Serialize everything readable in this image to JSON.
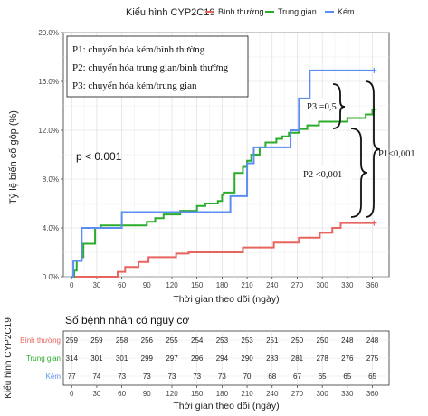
{
  "legend": {
    "title": "Kiểu hình CYP2C19",
    "items": [
      {
        "label": "Bình thường",
        "color": "#e8645f"
      },
      {
        "label": "Trung gian",
        "color": "#2cac2c"
      },
      {
        "label": "Kém",
        "color": "#5b8ef0"
      }
    ]
  },
  "chart_data": {
    "type": "line",
    "step": true,
    "xlabel": "Thời gian theo dõi (ngày)",
    "ylabel": "Tỷ lệ biến cố gộp (%)",
    "xlim": [
      -10,
      380
    ],
    "ylim": [
      0,
      20
    ],
    "xticks": [
      0,
      30,
      60,
      90,
      120,
      150,
      180,
      210,
      240,
      270,
      300,
      330,
      360
    ],
    "yticks": [
      0,
      4,
      8,
      12,
      16,
      20
    ],
    "ytick_labels": [
      "0.0%",
      "4.0%",
      "8.0%",
      "12.0%",
      "16.0%",
      "20.0%"
    ],
    "grid": true,
    "legend_position": "top",
    "series": [
      {
        "name": "Bình thường",
        "color": "#e8645f",
        "x": [
          0,
          48,
          55,
          60,
          64,
          70,
          80,
          92,
          120,
          125,
          140,
          170,
          205,
          225,
          242,
          252,
          272,
          287,
          297,
          312,
          322,
          362
        ],
        "y": [
          0,
          0,
          0.4,
          0.4,
          0.8,
          0.8,
          1.2,
          1.6,
          1.6,
          1.9,
          2.0,
          2.0,
          2.4,
          2.4,
          2.8,
          2.8,
          3.2,
          3.2,
          3.6,
          4.0,
          4.4,
          4.4
        ]
      },
      {
        "name": "Trung gian",
        "color": "#2cac2c",
        "x": [
          0,
          3,
          6,
          12,
          14,
          28,
          35,
          60,
          90,
          100,
          110,
          130,
          150,
          160,
          175,
          180,
          182,
          195,
          205,
          210,
          215,
          225,
          232,
          245,
          252,
          260,
          265,
          272,
          282,
          290,
          296,
          302,
          322,
          330,
          342,
          352,
          360,
          362
        ],
        "y": [
          0,
          0.5,
          1.3,
          1.6,
          2.7,
          4.0,
          4.2,
          4.2,
          4.5,
          4.8,
          5.1,
          5.4,
          5.8,
          6.0,
          6.2,
          6.7,
          6.9,
          8.5,
          9.0,
          9.5,
          10.0,
          10.6,
          11.0,
          11.3,
          11.5,
          11.8,
          11.8,
          12.1,
          12.4,
          12.4,
          12.7,
          12.7,
          12.7,
          13.0,
          13.0,
          13.3,
          13.7,
          13.7
        ]
      },
      {
        "name": "Kém",
        "color": "#5b8ef0",
        "x": [
          0,
          2,
          8,
          12,
          18,
          28,
          42,
          60,
          120,
          182,
          190,
          198,
          210,
          218,
          242,
          262,
          272,
          285,
          362
        ],
        "y": [
          0,
          1.3,
          1.3,
          4.0,
          4.0,
          4.0,
          4.0,
          5.3,
          5.3,
          5.3,
          6.6,
          6.6,
          9.3,
          10.6,
          10.6,
          12.0,
          14.6,
          16.9,
          16.9
        ]
      }
    ],
    "annotations": {
      "pvalue_box": [
        "P1: chuyển hóa kém/bình thường",
        "P2: chuyển hóa trung gian/bình thường",
        "P3: chuyển hóa kém/trung gian"
      ],
      "overall_p": "p < 0.001",
      "p3": "P3 =0,5",
      "p2": "P2 <0,001",
      "p1": "P1<0,001"
    }
  },
  "risk_table": {
    "title": "Số bệnh nhân có nguy cơ",
    "ylabel": "Kiểu hình CYP2C19",
    "xlabel": "Thời gian theo dõi (ngày)",
    "xticks": [
      0,
      30,
      60,
      90,
      120,
      150,
      180,
      210,
      240,
      270,
      300,
      330,
      360
    ],
    "rows": [
      {
        "label": "Bình thường",
        "color": "#e8645f",
        "values": [
          259,
          259,
          258,
          256,
          255,
          254,
          253,
          253,
          251,
          250,
          250,
          248,
          248
        ]
      },
      {
        "label": "Trung gian",
        "color": "#2cac2c",
        "values": [
          314,
          301,
          301,
          299,
          297,
          296,
          294,
          290,
          283,
          281,
          278,
          276,
          275
        ]
      },
      {
        "label": "Kém",
        "color": "#5b8ef0",
        "values": [
          77,
          74,
          73,
          73,
          73,
          73,
          73,
          70,
          68,
          67,
          65,
          65,
          65
        ]
      }
    ]
  }
}
